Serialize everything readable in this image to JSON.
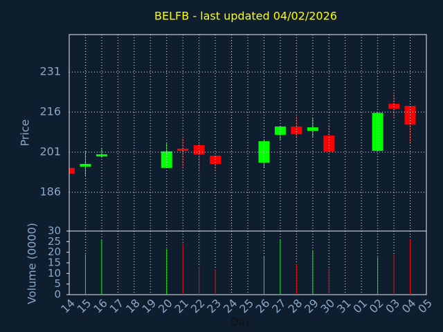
{
  "chart_data": [
    {
      "type": "candlestick",
      "title": "BELFB - last updated 04/02/2026",
      "ylabel": "Price",
      "open": [
        195.1,
        195.6,
        199.4,
        null,
        null,
        null,
        195.1,
        202.3,
        203.6,
        199.7,
        null,
        null,
        197.1,
        207.5,
        210.6,
        209.0,
        207.2,
        null,
        null,
        201.5,
        219.1,
        218.3,
        null
      ],
      "high": [
        195.1,
        201.5,
        202.6,
        null,
        null,
        null,
        204.4,
        206.2,
        204.4,
        199.7,
        null,
        null,
        205.7,
        210.6,
        214.4,
        213.9,
        211.3,
        null,
        null,
        215.7,
        222.7,
        218.3,
        null
      ],
      "low": [
        193.0,
        192.0,
        198.9,
        null,
        null,
        null,
        195.1,
        195.1,
        193.8,
        194.5,
        null,
        null,
        195.1,
        205.4,
        206.2,
        206.7,
        201.3,
        null,
        null,
        201.5,
        213.9,
        204.1,
        null
      ],
      "close": [
        193.0,
        196.6,
        200.2,
        null,
        null,
        null,
        201.3,
        201.5,
        200.2,
        196.6,
        null,
        null,
        205.1,
        210.6,
        207.7,
        210.3,
        201.3,
        null,
        null,
        215.7,
        217.3,
        211.3,
        null
      ],
      "up_color": "#00ff00",
      "down_color": "#ff0000",
      "ylim": [
        171.5,
        245
      ],
      "yticks": [
        186,
        201,
        216,
        231
      ],
      "grid": true
    },
    {
      "type": "bar",
      "ylabel": "Volume (0000)",
      "xlabel": "Day",
      "categories": [
        "14",
        "15",
        "16",
        "17",
        "18",
        "19",
        "20",
        "21",
        "22",
        "23",
        "24",
        "25",
        "26",
        "27",
        "28",
        "29",
        "30",
        "31",
        "01",
        "02",
        "03",
        "04",
        "05"
      ],
      "values": [
        null,
        19,
        26,
        null,
        null,
        null,
        21.5,
        24,
        13,
        11.7,
        null,
        null,
        18.3,
        26,
        14.3,
        20.9,
        12.4,
        null,
        null,
        17.6,
        18.9,
        26,
        null
      ],
      "ylim": [
        0,
        30
      ],
      "yticks": [
        0,
        5,
        10,
        15,
        20,
        25,
        30
      ],
      "grid": true
    }
  ]
}
